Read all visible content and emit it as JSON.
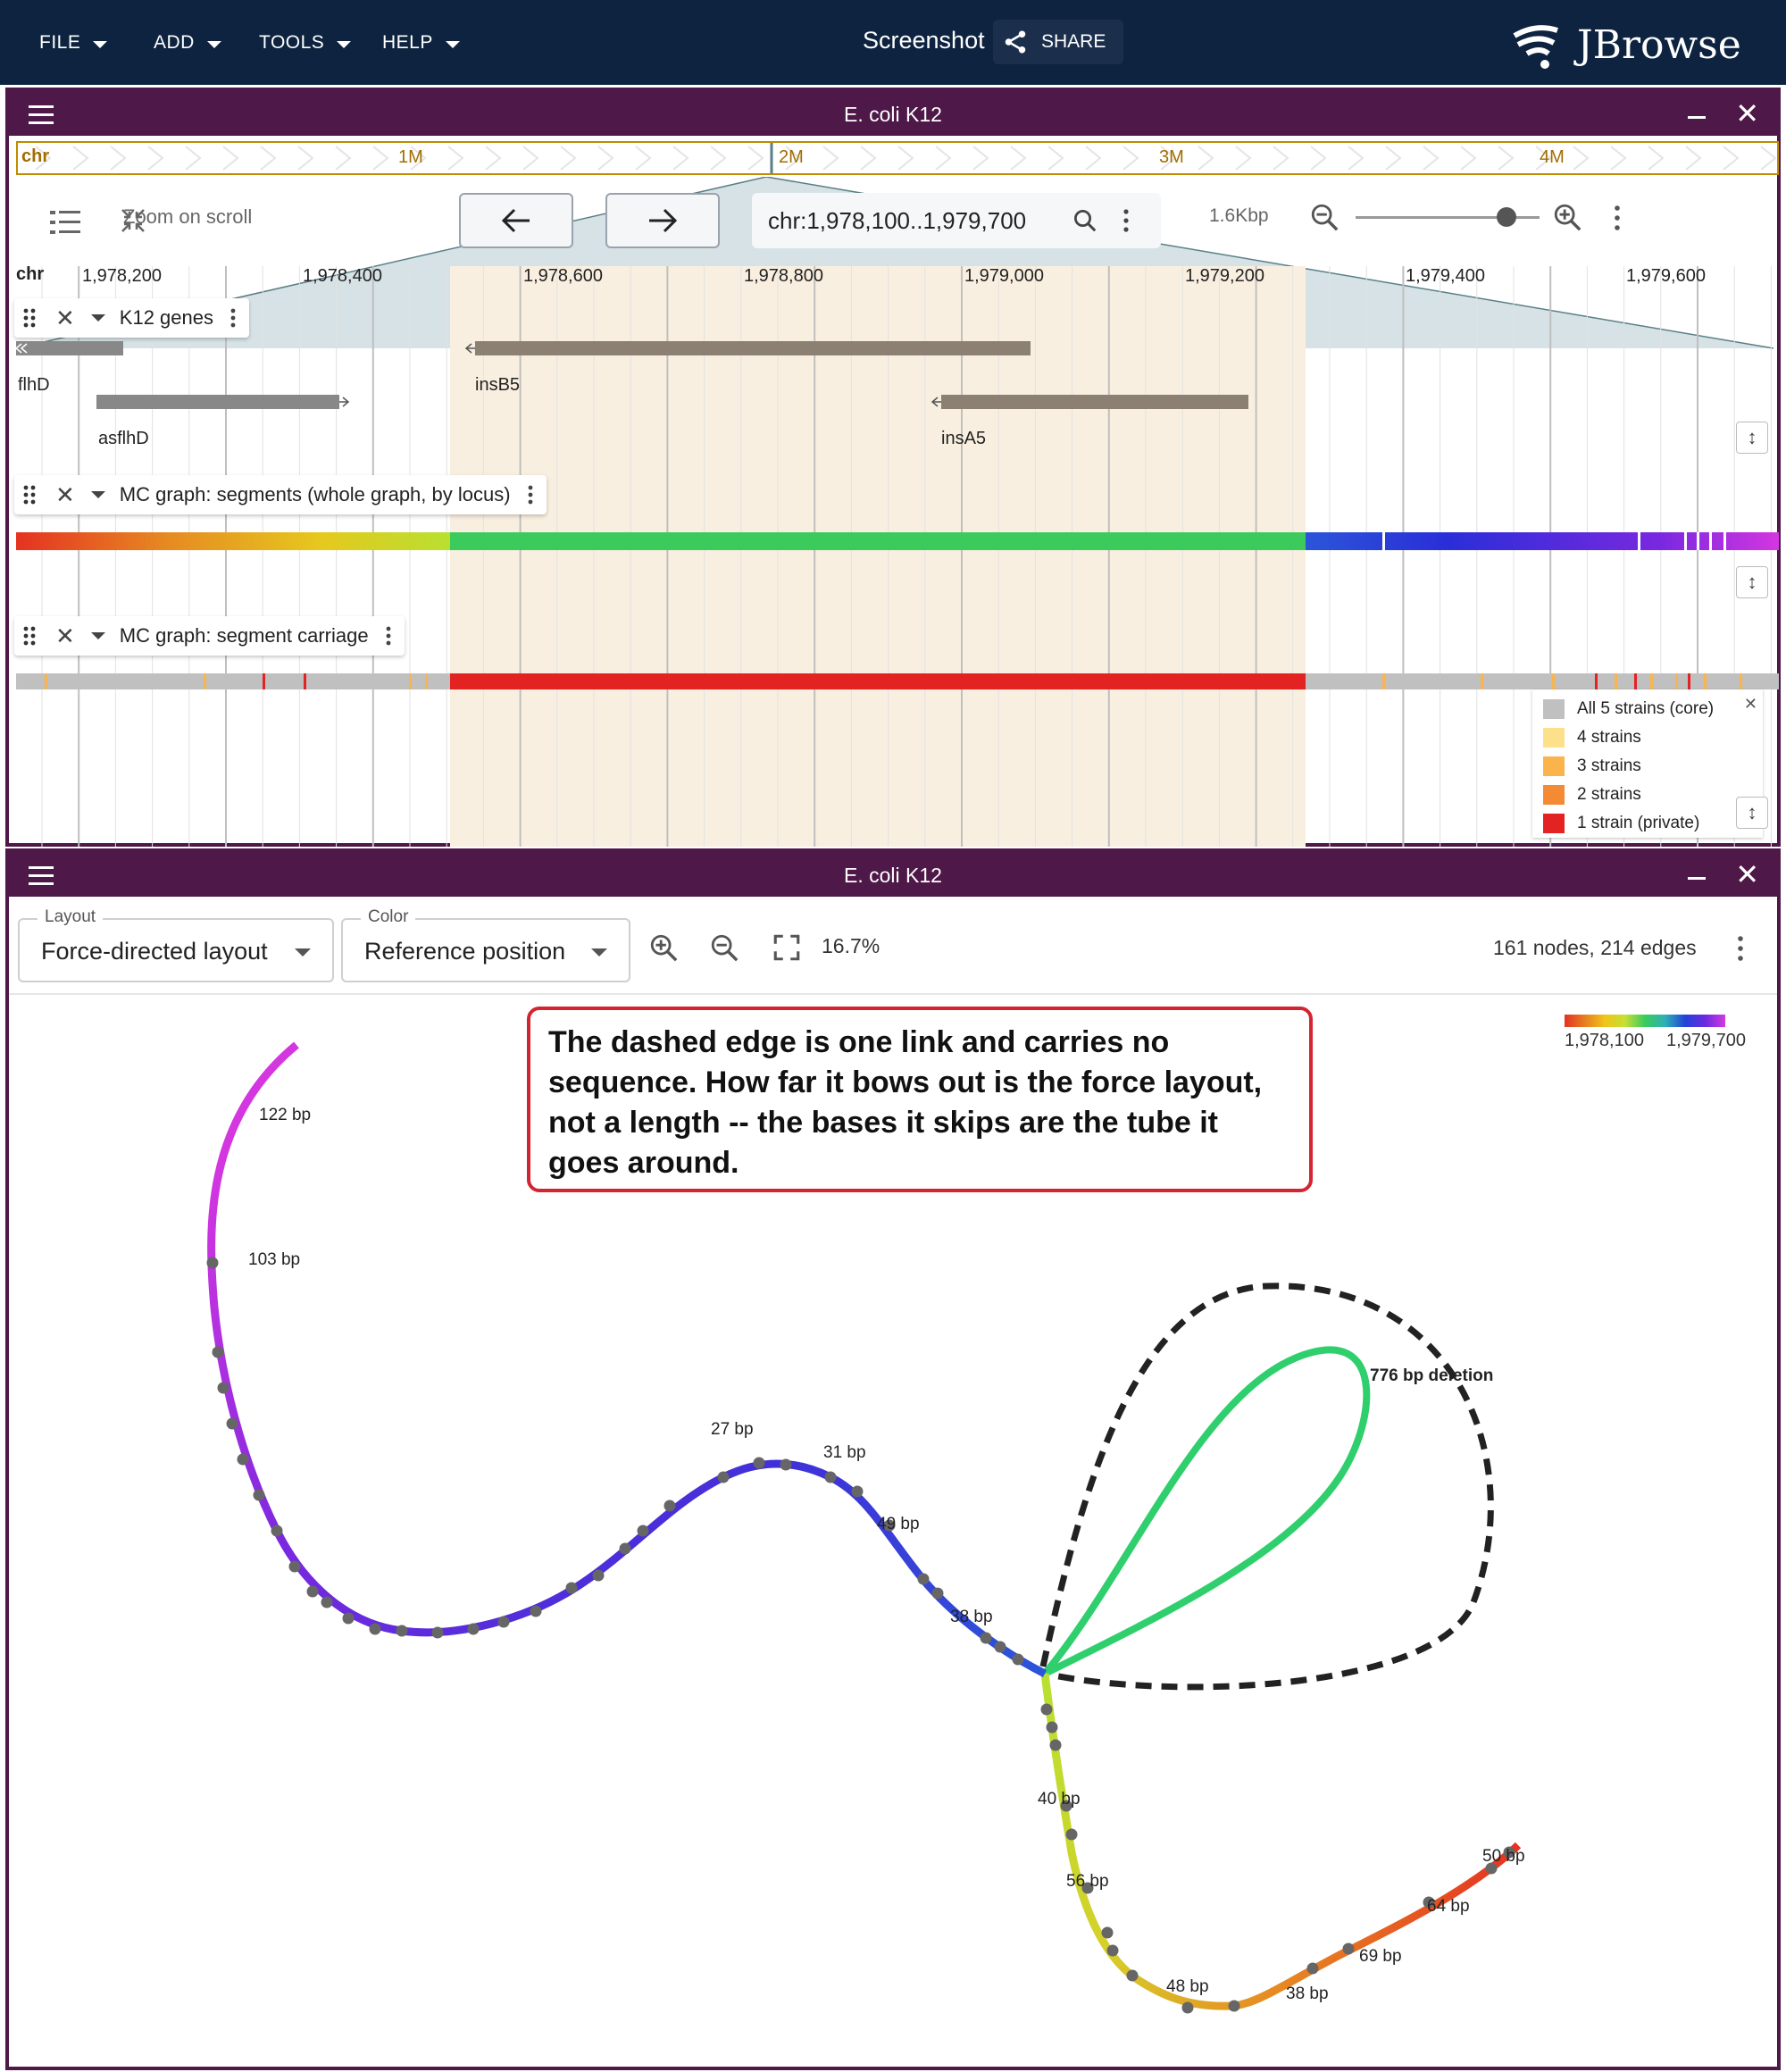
{
  "appbar": {
    "menus": [
      "FILE",
      "ADD",
      "TOOLS",
      "HELP"
    ],
    "session_name": "Screenshot",
    "share_label": "SHARE",
    "logo_text": "JBrowse"
  },
  "linear_view": {
    "title": "E. coli K12",
    "overview": {
      "refname": "chr",
      "ticks": [
        "1M",
        "2M",
        "3M",
        "4M"
      ]
    },
    "toolbar": {
      "zoom_on_scroll": "Zoom on scroll",
      "locstring": "chr:1,978,100..1,979,700",
      "size": "1.6Kbp",
      "zoom_level": 0.82
    },
    "ruler": {
      "refname": "chr",
      "ticks": [
        "1,978,200",
        "1,978,400",
        "1,978,600",
        "1,978,800",
        "1,979,000",
        "1,979,200",
        "1,979,400",
        "1,979,600"
      ]
    },
    "tracks": [
      {
        "name": "K12 genes",
        "features": [
          "flhD",
          "asflhD",
          "insB5",
          "insA5"
        ]
      },
      {
        "name": "MC graph: segments (whole graph, by locus)"
      },
      {
        "name": "MC graph: segment carriage",
        "legend": [
          {
            "label": "All 5 strains (core)",
            "color": "#c0c0c0"
          },
          {
            "label": "4 strains",
            "color": "#fde08a"
          },
          {
            "label": "3 strains",
            "color": "#fbb44c"
          },
          {
            "label": "2 strains",
            "color": "#f58a35"
          },
          {
            "label": "1 strain (private)",
            "color": "#e32222"
          }
        ]
      }
    ]
  },
  "graph_view": {
    "title": "E. coli K12",
    "layout_label": "Layout",
    "layout_value": "Force-directed layout",
    "color_label": "Color",
    "color_value": "Reference position",
    "zoom_pct": "16.7%",
    "count": "161 nodes, 214 edges",
    "callout": "The dashed edge is one link and carries no sequence. How far it bows out is the force layout, not a length -- the bases it skips are the tube it goes around.",
    "color_legend": {
      "min": "1,978,100",
      "max": "1,979,700"
    },
    "segment_labels": [
      "122 bp",
      "103 bp",
      "27 bp",
      "31 bp",
      "49 bp",
      "38 bp",
      "776 bp deletion",
      "40 bp",
      "56 bp",
      "48 bp",
      "38 bp",
      "69 bp",
      "64 bp",
      "50 bp"
    ]
  }
}
